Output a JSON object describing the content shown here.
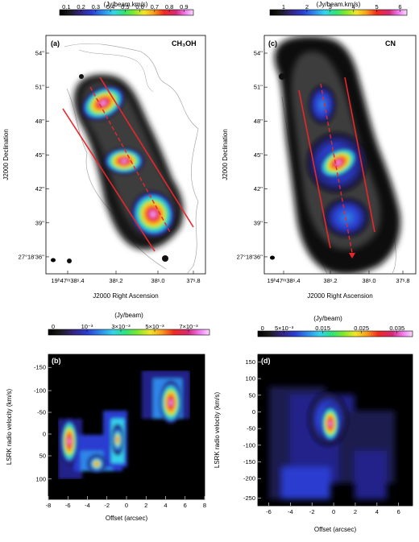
{
  "colors": {
    "cmap_stops": [
      "#000000",
      "#1a1a1a",
      "#34237a",
      "#2b3dd0",
      "#2f86e8",
      "#34d2ec",
      "#2fe27a",
      "#7be82f",
      "#f0e62a",
      "#f7a21f",
      "#ee2a21",
      "#d42a79",
      "#f07ef0",
      "#fbd8fb"
    ],
    "line_red": "#e8262c",
    "contour_grey": "#9a9a9a"
  },
  "panels": {
    "a": {
      "label": "(a)",
      "molecule": "CH₃OH",
      "unit": "(Jy/beam.km/s)",
      "cbar_ticks": [
        "0.1",
        "0.2",
        "0.3",
        "0.4",
        "0.5",
        "0.6",
        "0.7",
        "0.8",
        "0.9"
      ],
      "y_ticks": [
        "54''",
        "51''",
        "48''",
        "45''",
        "42''",
        "39''",
        "27°18'36''"
      ],
      "x_ticks": [
        "19ʰ47ᵐ38ˢ.4",
        "38ˢ.2",
        "38ˢ.0",
        "37ˢ.8"
      ],
      "xlabel": "J2000 Right Ascension",
      "ylabel": "J2000 Declination"
    },
    "c": {
      "label": "(c)",
      "molecule": "CN",
      "unit": "(Jy/beam.km/s)",
      "cbar_ticks": [
        "1",
        "2",
        "3",
        "4",
        "5",
        "6"
      ],
      "y_ticks": [
        "54''",
        "51''",
        "48''",
        "45''",
        "42''",
        "39''",
        "27°18'36''"
      ],
      "x_ticks": [
        "19ʰ47ᵐ38ˢ.4",
        "38ˢ.2",
        "38ˢ.0",
        "37ˢ.8"
      ],
      "xlabel": "J2000 Right Ascension",
      "ylabel": "J2000 Declination"
    },
    "b": {
      "label": "(b)",
      "unit": "(Jy/beam)",
      "cbar_ticks": [
        "0",
        "10⁻³",
        "3×10⁻³",
        "5×10⁻³",
        "7×10⁻³"
      ],
      "y_ticks": [
        "-150",
        "-100",
        "-50",
        "0",
        "50",
        "100"
      ],
      "x_ticks": [
        "-8",
        "-6",
        "-4",
        "-2",
        "0",
        "2",
        "4",
        "6",
        "8"
      ],
      "xlabel": "Offset (arcsec)",
      "ylabel": "LSRK radio velocity  (km/s)"
    },
    "d": {
      "label": "(d)",
      "unit": "(Jy/beam)",
      "cbar_ticks": [
        "0",
        "5×10⁻³",
        "0.015",
        "0.025",
        "0.035"
      ],
      "y_ticks": [
        "150",
        "100",
        "50",
        "0",
        "-50",
        "-100",
        "-150",
        "-200",
        "-250"
      ],
      "x_ticks": [
        "-6",
        "-4",
        "-2",
        "0",
        "2",
        "4",
        "6"
      ],
      "xlabel": "Offset (arcsec)",
      "ylabel": "LSRK radio velocity  (km/s)"
    }
  }
}
